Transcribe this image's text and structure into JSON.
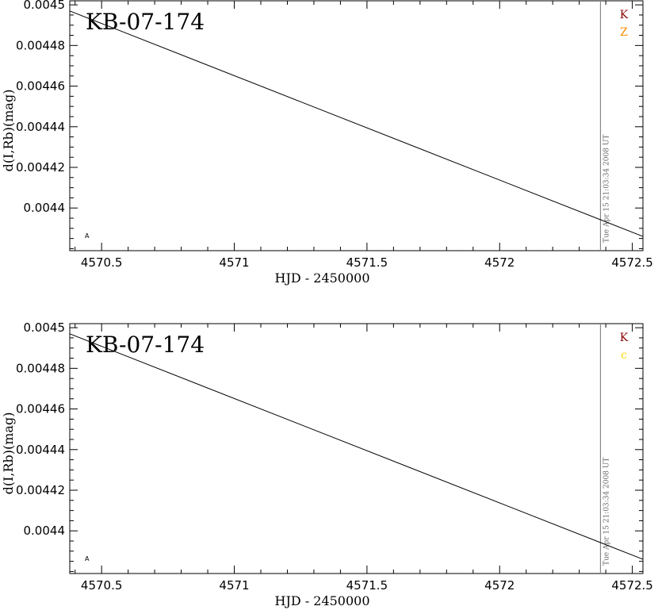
{
  "chart_data": [
    {
      "type": "line",
      "title": "KB-07-174",
      "xlabel": "HJD - 2450000",
      "ylabel": "d(I,Rb)(mag)",
      "xlim": [
        4570.38,
        4572.54
      ],
      "ylim": [
        0.004379,
        0.004502
      ],
      "xticks": [
        4570.5,
        4571,
        4571.5,
        4572,
        4572.5
      ],
      "xtick_labels": [
        "4570.5",
        "4571",
        "4571.5",
        "4572",
        "4572.5"
      ],
      "yticks": [
        0.0044,
        0.00442,
        0.00444,
        0.00446,
        0.00448,
        0.0045
      ],
      "ytick_labels": [
        "0.0044",
        "0.00442",
        "0.00444",
        "0.00446",
        "0.00448",
        "0.0045"
      ],
      "series": [
        {
          "x": [
            4570.38,
            4572.54
          ],
          "y": [
            0.004497,
            0.004386
          ],
          "color": "#000000"
        }
      ],
      "vline": {
        "x": 4572.38,
        "label": "Tue Apr 15 21:03:34 2008 UT",
        "color": "#888888"
      },
      "legend": [
        {
          "label": "K",
          "color": "#8B0000"
        },
        {
          "label": "Z",
          "color": "#FF8C00"
        }
      ],
      "marker_label": "A",
      "grid": false
    },
    {
      "type": "line",
      "title": "KB-07-174",
      "xlabel": "HJD - 2450000",
      "ylabel": "d(I,Rb)(mag)",
      "xlim": [
        4570.38,
        4572.54
      ],
      "ylim": [
        0.004379,
        0.004502
      ],
      "xticks": [
        4570.5,
        4571,
        4571.5,
        4572,
        4572.5
      ],
      "xtick_labels": [
        "4570.5",
        "4571",
        "4571.5",
        "4572",
        "4572.5"
      ],
      "yticks": [
        0.0044,
        0.00442,
        0.00444,
        0.00446,
        0.00448,
        0.0045
      ],
      "ytick_labels": [
        "0.0044",
        "0.00442",
        "0.00444",
        "0.00446",
        "0.00448",
        "0.0045"
      ],
      "series": [
        {
          "x": [
            4570.38,
            4572.54
          ],
          "y": [
            0.004497,
            0.004386
          ],
          "color": "#000000"
        }
      ],
      "vline": {
        "x": 4572.38,
        "label": "Tue Apr 15 21:03:34 2008 UT",
        "color": "#888888"
      },
      "legend": [
        {
          "label": "K",
          "color": "#8B0000"
        },
        {
          "label": "c",
          "color": "#FFD700"
        }
      ],
      "marker_label": "A",
      "grid": false
    }
  ]
}
